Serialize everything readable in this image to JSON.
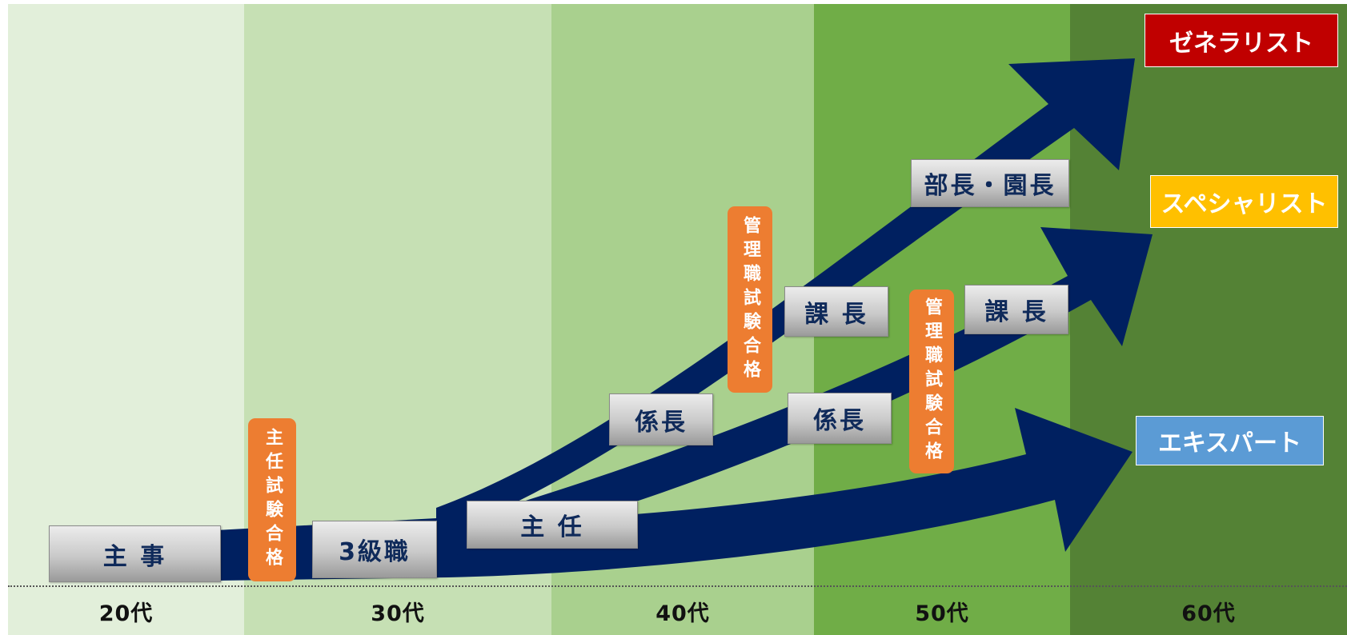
{
  "age_bands": [
    {
      "label": "20代",
      "color": "#e2efda"
    },
    {
      "label": "30代",
      "color": "#c6e0b4"
    },
    {
      "label": "40代",
      "color": "#a9d08e"
    },
    {
      "label": "50代",
      "color": "#70ad47"
    },
    {
      "label": "60代",
      "color": "#548235"
    }
  ],
  "positions": {
    "shuji": "主 事",
    "kyu3": "3級職",
    "shunin": "主 任",
    "kakaricho_upper": "係長",
    "kakaricho_lower": "係長",
    "kacho_upper": "課 長",
    "kacho_lower": "課 長",
    "bucho": "部長・園長"
  },
  "exams": {
    "shunin_exam": "主任試験合格",
    "kanri_exam_1": "管理職試験合格",
    "kanri_exam_2": "管理職試験合格"
  },
  "tracks": {
    "generalist": {
      "label": "ゼネラリスト",
      "color": "#c00000"
    },
    "specialist": {
      "label": "スペシャリスト",
      "color": "#ffc000"
    },
    "expert": {
      "label": "エキスパート",
      "color": "#5b9bd5"
    }
  },
  "arrow_color": "#002060",
  "position_text_color": "#0f2a5a",
  "exam_color": "#ed7d31"
}
